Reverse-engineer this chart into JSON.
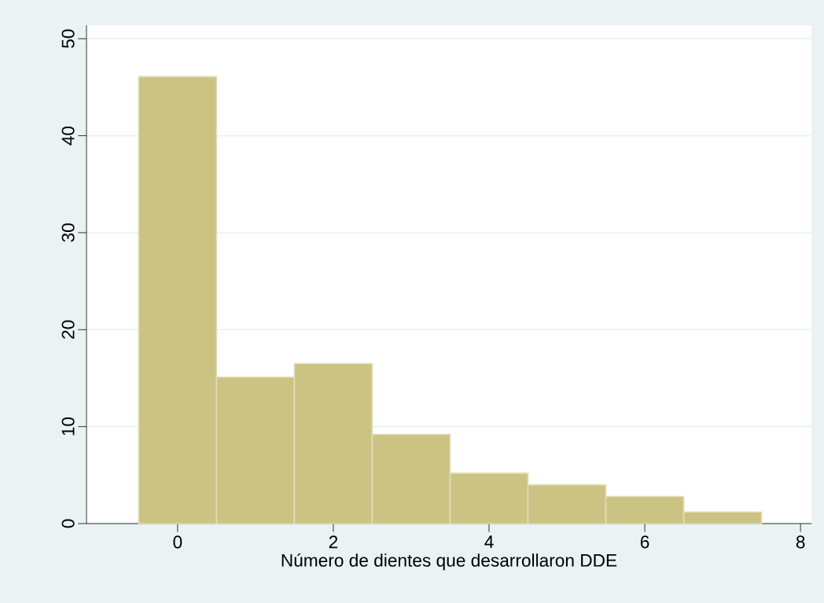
{
  "chart_data": {
    "type": "histogram",
    "xlabel": "Número de dientes que desarrollaron DDE",
    "bins": [
      -0.5,
      0.5,
      1.5,
      2.5,
      3.5,
      4.5,
      5.5,
      6.5,
      7.5
    ],
    "values": [
      46.1,
      15.1,
      16.5,
      9.2,
      5.2,
      4.0,
      2.8,
      1.2
    ],
    "color": "#cbc382",
    "xlim": [
      -1.17,
      8.14
    ],
    "ylim": [
      0,
      51.4
    ],
    "xticks": [
      0,
      2,
      4,
      6,
      8
    ],
    "yticks": [
      0,
      10,
      20,
      30,
      40,
      50
    ],
    "grid": "y"
  }
}
